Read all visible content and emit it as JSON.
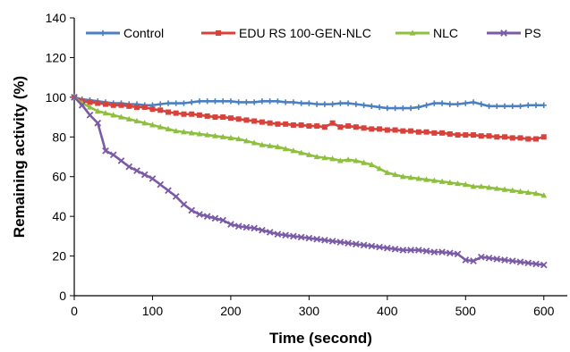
{
  "chart_data": {
    "type": "line",
    "title": "",
    "xlabel": "Time (second)",
    "ylabel": "Remaining activity (%)",
    "xlim": [
      0,
      630
    ],
    "ylim": [
      0,
      140
    ],
    "xticks": [
      0,
      100,
      200,
      300,
      400,
      500,
      600
    ],
    "yticks": [
      0,
      20,
      40,
      60,
      80,
      100,
      120,
      140
    ],
    "grid": false,
    "legend_position": "top",
    "x": [
      0,
      10,
      20,
      30,
      40,
      50,
      60,
      70,
      80,
      90,
      100,
      110,
      120,
      130,
      140,
      150,
      160,
      170,
      180,
      190,
      200,
      210,
      220,
      230,
      240,
      250,
      260,
      270,
      280,
      290,
      300,
      310,
      320,
      330,
      340,
      350,
      360,
      370,
      380,
      390,
      400,
      410,
      420,
      430,
      440,
      450,
      460,
      470,
      480,
      490,
      500,
      510,
      520,
      530,
      540,
      550,
      560,
      570,
      580,
      590,
      600
    ],
    "series": [
      {
        "name": "Control",
        "color": "#4a7fc1",
        "marker": "plus",
        "values": [
          100,
          99,
          98.5,
          98,
          97.5,
          97,
          97,
          96.5,
          96.5,
          96,
          96,
          96.5,
          97,
          97,
          97,
          97.5,
          98,
          98,
          98,
          98,
          98,
          97.5,
          97.5,
          97.5,
          98,
          98,
          98,
          97.5,
          97.5,
          97,
          97,
          96.5,
          96.5,
          96.5,
          97,
          97,
          96.5,
          96,
          95.5,
          95,
          94.5,
          94.5,
          94.5,
          94.5,
          95,
          96,
          97,
          97,
          96.5,
          96.5,
          97,
          97.5,
          96.5,
          95.5,
          95.5,
          95.5,
          95.5,
          95.5,
          96,
          96,
          96
        ]
      },
      {
        "name": "EDU RS 100-GEN-NLC",
        "color": "#d9423b",
        "marker": "square",
        "values": [
          100,
          98,
          97.5,
          97,
          96.5,
          96,
          96,
          95.5,
          95,
          95,
          94,
          93.5,
          92.5,
          92,
          91.5,
          91.5,
          91,
          90.5,
          90,
          90,
          89.5,
          89,
          88.5,
          88,
          87.5,
          87,
          86.5,
          86.5,
          86,
          86,
          85.5,
          85.5,
          85,
          87,
          85,
          85.5,
          85,
          84.5,
          84,
          84,
          83.5,
          83.5,
          83,
          83,
          82.5,
          82.5,
          82,
          82,
          81.5,
          81,
          81,
          81,
          80.5,
          80.5,
          80,
          80,
          79.5,
          79.5,
          79,
          79,
          80
        ]
      },
      {
        "name": "NLC",
        "color": "#8fbf3f",
        "marker": "triangle",
        "values": [
          100,
          97,
          95,
          93,
          92,
          91,
          90,
          89,
          88,
          87,
          86,
          85,
          84,
          83,
          82.5,
          82,
          81.5,
          81,
          80.5,
          80,
          79.5,
          79,
          78,
          77,
          76,
          75.5,
          75,
          74,
          73,
          72,
          71,
          70,
          69.5,
          69,
          68,
          68.5,
          68,
          67,
          66,
          64,
          62,
          61,
          60,
          59.5,
          59,
          58.5,
          58,
          57.5,
          57,
          56.5,
          56,
          55,
          55,
          54.5,
          54,
          53.5,
          53,
          52.5,
          52,
          51.5,
          50.5
        ]
      },
      {
        "name": "PS",
        "color": "#7b5aa6",
        "marker": "x",
        "values": [
          100,
          96,
          91,
          87,
          73,
          71,
          68,
          65,
          63,
          61,
          59,
          56,
          53,
          50,
          46,
          43,
          41,
          40,
          39,
          38,
          36,
          35,
          34.5,
          34,
          33,
          32,
          31,
          30.5,
          30,
          29.5,
          29,
          28.5,
          28,
          27.5,
          27,
          26.5,
          26,
          25.5,
          25,
          24.5,
          24,
          23.5,
          23,
          23,
          23,
          22.5,
          22,
          22,
          21.5,
          21,
          18,
          17.5,
          19.5,
          19,
          18.5,
          18,
          17.5,
          17,
          16.5,
          16,
          15.5
        ]
      }
    ]
  }
}
